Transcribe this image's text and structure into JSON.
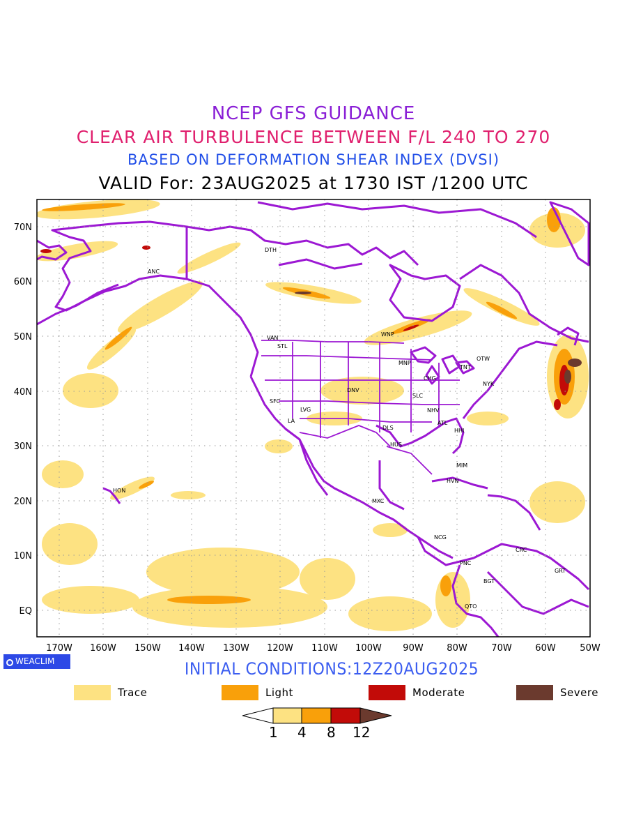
{
  "titles": {
    "line1": "NCEP GFS GUIDANCE",
    "line2": "CLEAR AIR TURBULENCE BETWEEN F/L 240 TO 270",
    "line3": "BASED ON DEFORMATION SHEAR INDEX (DVSI)",
    "line4": "VALID For: 23AUG2025 at 1730 IST /1200 UTC"
  },
  "map": {
    "lon_range": [
      -175,
      -50
    ],
    "lat_range": [
      -5,
      75
    ],
    "x_ticks": [
      "170W",
      "160W",
      "150W",
      "140W",
      "130W",
      "120W",
      "110W",
      "100W",
      "90W",
      "80W",
      "70W",
      "60W",
      "50W"
    ],
    "y_ticks": [
      "70N",
      "60N",
      "50N",
      "40N",
      "30N",
      "20N",
      "10N",
      "EQ"
    ],
    "stations": [
      "ANC",
      "DTH",
      "VAN",
      "STL",
      "WNP",
      "MNP",
      "OTW",
      "TNT",
      "CHG",
      "NYK",
      "DNV",
      "SFC",
      "LVG",
      "SLC",
      "NHV",
      "ATL",
      "HHI",
      "LA",
      "DLS",
      "HUS",
      "MIM",
      "HVN",
      "HON",
      "MXC",
      "NCG",
      "CRC",
      "PNC",
      "GRT",
      "BGT",
      "QTO"
    ]
  },
  "badge": {
    "icon": "circle-logo-icon",
    "text": "WEACLIM"
  },
  "initial_conditions": "INITIAL CONDITIONS:12Z20AUG2025",
  "legend": [
    {
      "label": "Trace",
      "color": "#fde282"
    },
    {
      "label": "Light",
      "color": "#f9a00a"
    },
    {
      "label": "Moderate",
      "color": "#c20b08"
    },
    {
      "label": "Severe",
      "color": "#6b3a2e"
    }
  ],
  "colorbar": {
    "ticks": [
      "1",
      "4",
      "8",
      "12"
    ],
    "colors": [
      "#ffffff",
      "#fde282",
      "#f9a00a",
      "#c20b08",
      "#6b3a2e"
    ]
  },
  "colors": {
    "coast": "#9c18d3",
    "grid": "#999999"
  }
}
